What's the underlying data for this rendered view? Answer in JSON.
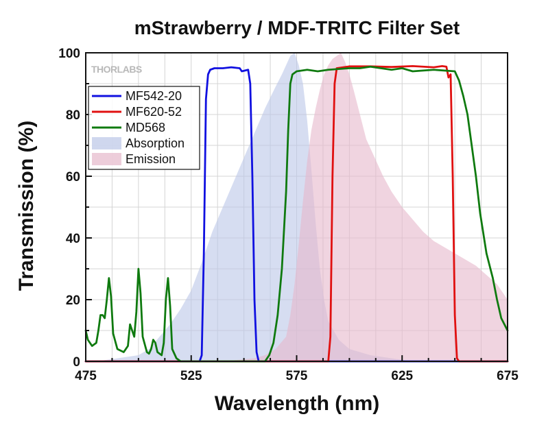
{
  "chart_data": {
    "type": "line",
    "title": "mStrawberry / MDF-TRITC Filter Set",
    "xlabel": "Wavelength (nm)",
    "ylabel": "Transmission (%)",
    "xlim": [
      475,
      675
    ],
    "ylim": [
      0,
      100
    ],
    "x_ticks": [
      475,
      525,
      575,
      625,
      675
    ],
    "y_ticks": [
      0,
      20,
      40,
      60,
      80,
      100
    ],
    "grid": true,
    "legend_position": "top-left",
    "watermark_logo": "THORLABS",
    "series": [
      {
        "name": "MF542-20",
        "kind": "line",
        "color": "#1010e0",
        "points": [
          [
            475,
            0
          ],
          [
            529,
            0
          ],
          [
            530,
            2
          ],
          [
            531,
            35
          ],
          [
            532,
            85
          ],
          [
            533,
            93
          ],
          [
            534,
            94.5
          ],
          [
            536,
            95
          ],
          [
            540,
            95
          ],
          [
            544,
            95.3
          ],
          [
            548,
            95
          ],
          [
            549,
            94
          ],
          [
            552,
            94.5
          ],
          [
            553,
            90
          ],
          [
            554,
            60
          ],
          [
            555,
            20
          ],
          [
            556,
            3
          ],
          [
            557,
            0
          ],
          [
            675,
            0
          ]
        ]
      },
      {
        "name": "MF620-52",
        "kind": "line",
        "color": "#e01010",
        "points": [
          [
            475,
            0
          ],
          [
            590,
            0
          ],
          [
            591,
            8
          ],
          [
            592,
            60
          ],
          [
            593,
            90
          ],
          [
            594,
            95
          ],
          [
            600,
            95.6
          ],
          [
            610,
            95.6
          ],
          [
            620,
            95.4
          ],
          [
            630,
            95.7
          ],
          [
            640,
            95.3
          ],
          [
            644,
            95.7
          ],
          [
            646,
            95.5
          ],
          [
            647,
            92
          ],
          [
            648,
            93
          ],
          [
            649,
            60
          ],
          [
            650,
            15
          ],
          [
            651,
            1
          ],
          [
            652,
            0
          ],
          [
            675,
            0
          ]
        ]
      },
      {
        "name": "MD568",
        "kind": "line",
        "color": "#0f7a0f",
        "points": [
          [
            475,
            10
          ],
          [
            476,
            7
          ],
          [
            478,
            5
          ],
          [
            480,
            6
          ],
          [
            481,
            10
          ],
          [
            482,
            15
          ],
          [
            483,
            15
          ],
          [
            484,
            14
          ],
          [
            485,
            20
          ],
          [
            486,
            27
          ],
          [
            487,
            21
          ],
          [
            488,
            9
          ],
          [
            490,
            4
          ],
          [
            493,
            3
          ],
          [
            495,
            5
          ],
          [
            496,
            12
          ],
          [
            497,
            10
          ],
          [
            498,
            8
          ],
          [
            499,
            16
          ],
          [
            500,
            30
          ],
          [
            501,
            22
          ],
          [
            502,
            8
          ],
          [
            504,
            3
          ],
          [
            505,
            2.5
          ],
          [
            506,
            4
          ],
          [
            507,
            7
          ],
          [
            508,
            6
          ],
          [
            509,
            3
          ],
          [
            511,
            2
          ],
          [
            512,
            6
          ],
          [
            513,
            20
          ],
          [
            514,
            27
          ],
          [
            515,
            18
          ],
          [
            516,
            4
          ],
          [
            518,
            1
          ],
          [
            520,
            0
          ],
          [
            560,
            0
          ],
          [
            562,
            2
          ],
          [
            564,
            6
          ],
          [
            566,
            15
          ],
          [
            568,
            30
          ],
          [
            570,
            55
          ],
          [
            571,
            75
          ],
          [
            572,
            90
          ],
          [
            573,
            93
          ],
          [
            575,
            94
          ],
          [
            580,
            94.5
          ],
          [
            585,
            94
          ],
          [
            590,
            94.5
          ],
          [
            600,
            95
          ],
          [
            605,
            95
          ],
          [
            610,
            95.5
          ],
          [
            620,
            94.5
          ],
          [
            625,
            95
          ],
          [
            630,
            94
          ],
          [
            640,
            94.5
          ],
          [
            650,
            94
          ],
          [
            652,
            91
          ],
          [
            654,
            86
          ],
          [
            656,
            80
          ],
          [
            658,
            70
          ],
          [
            660,
            60
          ],
          [
            662,
            48
          ],
          [
            665,
            35
          ],
          [
            668,
            27
          ],
          [
            670,
            20
          ],
          [
            672,
            14
          ],
          [
            675,
            10
          ]
        ]
      },
      {
        "name": "Absorption",
        "kind": "area",
        "color": "#bac6e7",
        "points": [
          [
            475,
            0
          ],
          [
            480,
            0
          ],
          [
            490,
            1
          ],
          [
            500,
            2
          ],
          [
            505,
            4
          ],
          [
            510,
            8
          ],
          [
            515,
            12
          ],
          [
            520,
            17
          ],
          [
            525,
            23
          ],
          [
            530,
            32
          ],
          [
            535,
            42
          ],
          [
            540,
            50
          ],
          [
            545,
            58
          ],
          [
            550,
            66
          ],
          [
            555,
            74
          ],
          [
            560,
            82
          ],
          [
            565,
            89
          ],
          [
            568,
            93
          ],
          [
            570,
            96
          ],
          [
            572,
            99
          ],
          [
            574,
            100
          ],
          [
            576,
            96
          ],
          [
            578,
            90
          ],
          [
            580,
            78
          ],
          [
            582,
            62
          ],
          [
            584,
            45
          ],
          [
            586,
            30
          ],
          [
            588,
            20
          ],
          [
            590,
            13
          ],
          [
            595,
            7
          ],
          [
            600,
            4
          ],
          [
            610,
            2
          ],
          [
            620,
            1
          ],
          [
            630,
            0
          ],
          [
            675,
            0
          ]
        ]
      },
      {
        "name": "Emission",
        "kind": "area",
        "color": "#e6b8cb",
        "points": [
          [
            475,
            0
          ],
          [
            540,
            0
          ],
          [
            555,
            1
          ],
          [
            560,
            2
          ],
          [
            565,
            4
          ],
          [
            570,
            8
          ],
          [
            572,
            15
          ],
          [
            574,
            25
          ],
          [
            576,
            38
          ],
          [
            578,
            52
          ],
          [
            580,
            65
          ],
          [
            582,
            75
          ],
          [
            584,
            82
          ],
          [
            586,
            88
          ],
          [
            588,
            93
          ],
          [
            590,
            96
          ],
          [
            592,
            98
          ],
          [
            594,
            99
          ],
          [
            596,
            100
          ],
          [
            598,
            97
          ],
          [
            600,
            93
          ],
          [
            602,
            88
          ],
          [
            605,
            80
          ],
          [
            608,
            72
          ],
          [
            612,
            66
          ],
          [
            616,
            60
          ],
          [
            620,
            55
          ],
          [
            625,
            50
          ],
          [
            630,
            46
          ],
          [
            635,
            42
          ],
          [
            640,
            39
          ],
          [
            645,
            37
          ],
          [
            650,
            35
          ],
          [
            655,
            33
          ],
          [
            660,
            31
          ],
          [
            665,
            28
          ],
          [
            670,
            25
          ],
          [
            675,
            20
          ]
        ]
      }
    ]
  }
}
